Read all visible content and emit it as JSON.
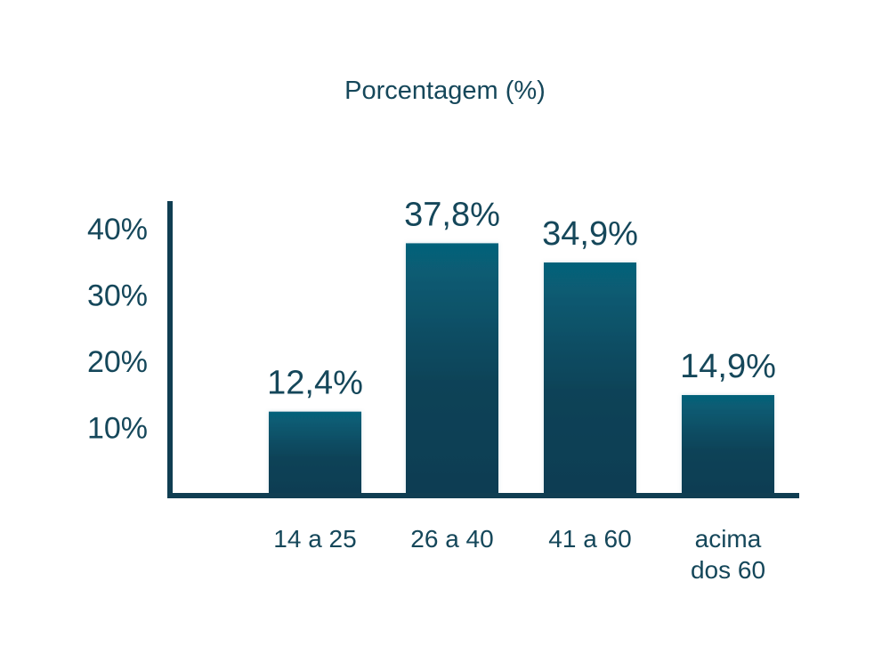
{
  "chart_data": {
    "type": "bar",
    "title": "Porcentagem (%)",
    "xlabel": "",
    "ylabel": "",
    "categories": [
      "14 a 25",
      "26 a 40",
      "41 a 60",
      "acima dos 60"
    ],
    "category_lines": [
      [
        "14 a 25"
      ],
      [
        "26 a 40"
      ],
      [
        "41 a 60"
      ],
      [
        "acima",
        "dos 60"
      ]
    ],
    "values": [
      12.4,
      37.8,
      34.9,
      14.9
    ],
    "data_labels": [
      "12,4%",
      "37,8%",
      "34,9%",
      "14,9%"
    ],
    "yticks": [
      {
        "value": 10,
        "label": "10%"
      },
      {
        "value": 20,
        "label": "20%"
      },
      {
        "value": 30,
        "label": "30%"
      },
      {
        "value": 40,
        "label": "40%"
      }
    ],
    "ylim": [
      0,
      44
    ],
    "grid": false,
    "legend": "none",
    "colors": {
      "bar_top": "#06627a",
      "bar_bottom": "#0a3d52",
      "axis": "#103e52",
      "text": "#15475a"
    }
  }
}
